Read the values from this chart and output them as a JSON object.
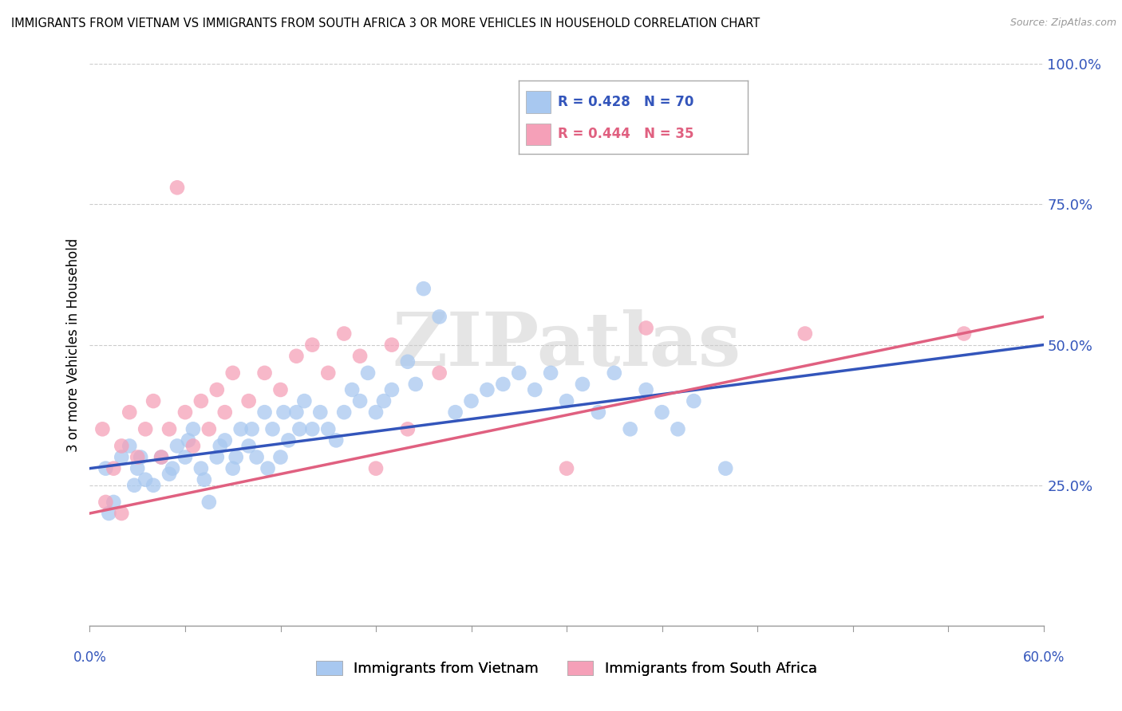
{
  "title": "IMMIGRANTS FROM VIETNAM VS IMMIGRANTS FROM SOUTH AFRICA 3 OR MORE VEHICLES IN HOUSEHOLD CORRELATION CHART",
  "source": "Source: ZipAtlas.com",
  "ylabel": "3 or more Vehicles in Household",
  "xlim": [
    0.0,
    60.0
  ],
  "ylim": [
    0.0,
    100.0
  ],
  "legend1_R": "0.428",
  "legend1_N": "70",
  "legend2_R": "0.444",
  "legend2_N": "35",
  "color_vietnam": "#A8C8F0",
  "color_south_africa": "#F5A0B8",
  "line_color_vietnam": "#3355BB",
  "line_color_south_africa": "#E06080",
  "tick_color": "#3355BB",
  "background_color": "#FFFFFF",
  "watermark": "ZIPatlas",
  "vietnam_points": [
    [
      1.0,
      28
    ],
    [
      1.5,
      22
    ],
    [
      2.0,
      30
    ],
    [
      2.5,
      32
    ],
    [
      3.0,
      28
    ],
    [
      3.5,
      26
    ],
    [
      4.0,
      25
    ],
    [
      4.5,
      30
    ],
    [
      5.0,
      27
    ],
    [
      5.5,
      32
    ],
    [
      6.0,
      30
    ],
    [
      6.5,
      35
    ],
    [
      7.0,
      28
    ],
    [
      7.5,
      22
    ],
    [
      8.0,
      30
    ],
    [
      8.5,
      33
    ],
    [
      9.0,
      28
    ],
    [
      9.5,
      35
    ],
    [
      10.0,
      32
    ],
    [
      10.5,
      30
    ],
    [
      11.0,
      38
    ],
    [
      11.5,
      35
    ],
    [
      12.0,
      30
    ],
    [
      12.5,
      33
    ],
    [
      13.0,
      38
    ],
    [
      13.5,
      40
    ],
    [
      14.0,
      35
    ],
    [
      14.5,
      38
    ],
    [
      15.0,
      35
    ],
    [
      15.5,
      33
    ],
    [
      16.0,
      38
    ],
    [
      16.5,
      42
    ],
    [
      17.0,
      40
    ],
    [
      17.5,
      45
    ],
    [
      18.0,
      38
    ],
    [
      18.5,
      40
    ],
    [
      19.0,
      42
    ],
    [
      20.0,
      47
    ],
    [
      20.5,
      43
    ],
    [
      21.0,
      60
    ],
    [
      22.0,
      55
    ],
    [
      23.0,
      38
    ],
    [
      24.0,
      40
    ],
    [
      25.0,
      42
    ],
    [
      26.0,
      43
    ],
    [
      27.0,
      45
    ],
    [
      28.0,
      42
    ],
    [
      29.0,
      45
    ],
    [
      30.0,
      40
    ],
    [
      31.0,
      43
    ],
    [
      32.0,
      38
    ],
    [
      33.0,
      45
    ],
    [
      34.0,
      35
    ],
    [
      35.0,
      42
    ],
    [
      36.0,
      38
    ],
    [
      37.0,
      35
    ],
    [
      38.0,
      40
    ],
    [
      40.0,
      28
    ],
    [
      1.2,
      20
    ],
    [
      2.8,
      25
    ],
    [
      3.2,
      30
    ],
    [
      5.2,
      28
    ],
    [
      6.2,
      33
    ],
    [
      7.2,
      26
    ],
    [
      8.2,
      32
    ],
    [
      9.2,
      30
    ],
    [
      10.2,
      35
    ],
    [
      11.2,
      28
    ],
    [
      12.2,
      38
    ],
    [
      13.2,
      35
    ]
  ],
  "south_africa_points": [
    [
      0.8,
      35
    ],
    [
      1.5,
      28
    ],
    [
      2.0,
      32
    ],
    [
      2.5,
      38
    ],
    [
      3.0,
      30
    ],
    [
      3.5,
      35
    ],
    [
      4.0,
      40
    ],
    [
      4.5,
      30
    ],
    [
      5.0,
      35
    ],
    [
      5.5,
      78
    ],
    [
      6.0,
      38
    ],
    [
      6.5,
      32
    ],
    [
      7.0,
      40
    ],
    [
      7.5,
      35
    ],
    [
      8.0,
      42
    ],
    [
      8.5,
      38
    ],
    [
      9.0,
      45
    ],
    [
      10.0,
      40
    ],
    [
      11.0,
      45
    ],
    [
      12.0,
      42
    ],
    [
      13.0,
      48
    ],
    [
      14.0,
      50
    ],
    [
      15.0,
      45
    ],
    [
      16.0,
      52
    ],
    [
      17.0,
      48
    ],
    [
      18.0,
      28
    ],
    [
      19.0,
      50
    ],
    [
      20.0,
      35
    ],
    [
      22.0,
      45
    ],
    [
      30.0,
      28
    ],
    [
      35.0,
      53
    ],
    [
      45.0,
      52
    ],
    [
      55.0,
      52
    ],
    [
      1.0,
      22
    ],
    [
      2.0,
      20
    ]
  ]
}
